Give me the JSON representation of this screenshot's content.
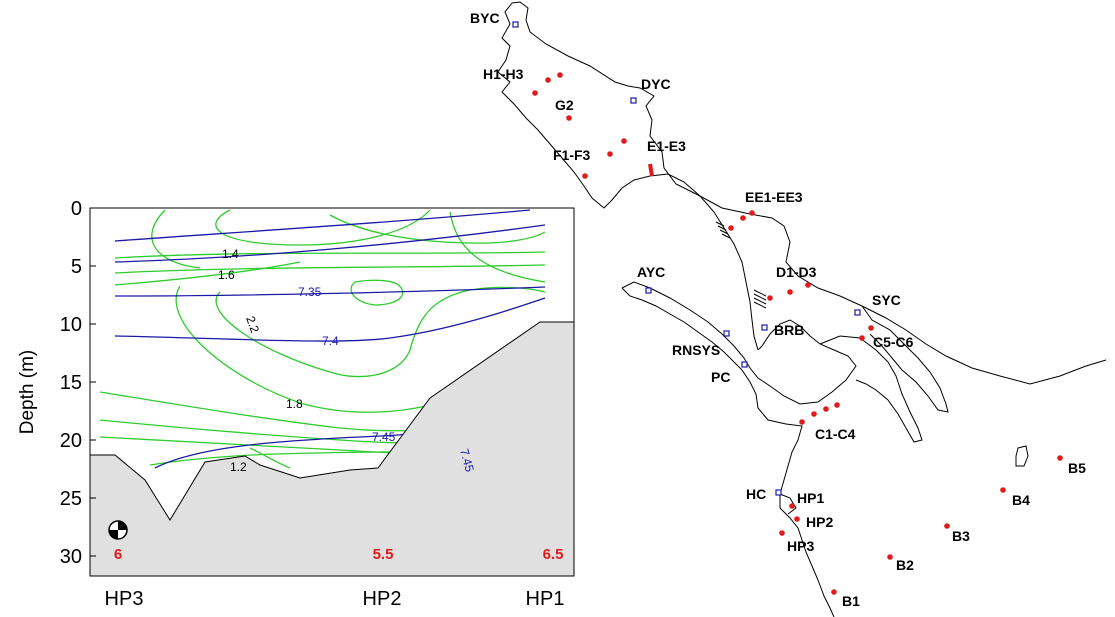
{
  "profile": {
    "ylabel": "Depth (m)",
    "y_ticks": [
      "0",
      "5",
      "10",
      "15",
      "20",
      "25",
      "30"
    ],
    "x_stations": [
      "HP3",
      "HP2",
      "HP1"
    ],
    "secchi_values": [
      "6",
      "5.5",
      "6.5"
    ],
    "colors": {
      "isohaline": "#1a1aa6",
      "temperature": "#2ecc2e",
      "bottom": "#e0e0e0",
      "secchi": "#e31a1c"
    },
    "contour_labels": {
      "c14": "1.4",
      "c16": "1.6",
      "c22": "2.2",
      "c18": "1.8",
      "c12": "1.2",
      "c735": "7.35",
      "c74": "7.4",
      "c745a": "7.45",
      "c745b": "7.45"
    },
    "icon": "secchi-disk-icon"
  },
  "map": {
    "labels": {
      "byc": "BYC",
      "h1h3": "H1-H3",
      "dyc": "DYC",
      "g2": "G2",
      "e1e3": "E1-E3",
      "f1f3": "F1-F3",
      "ee1ee3": "EE1-EE3",
      "ayc": "AYC",
      "d1d3": "D1-D3",
      "syc": "SYC",
      "brb": "BRB",
      "c5c6": "C5-C6",
      "rnsys": "RNSYS",
      "pc": "PC",
      "c1c4": "C1-C4",
      "b5": "B5",
      "b4": "B4",
      "hc": "HC",
      "hp1": "HP1",
      "hp2": "HP2",
      "b3": "B3",
      "hp3": "HP3",
      "b2": "B2",
      "b1": "B1"
    },
    "colors": {
      "site": "#e31a1c",
      "club": "#1a1aa6",
      "coast": "#000000"
    }
  }
}
